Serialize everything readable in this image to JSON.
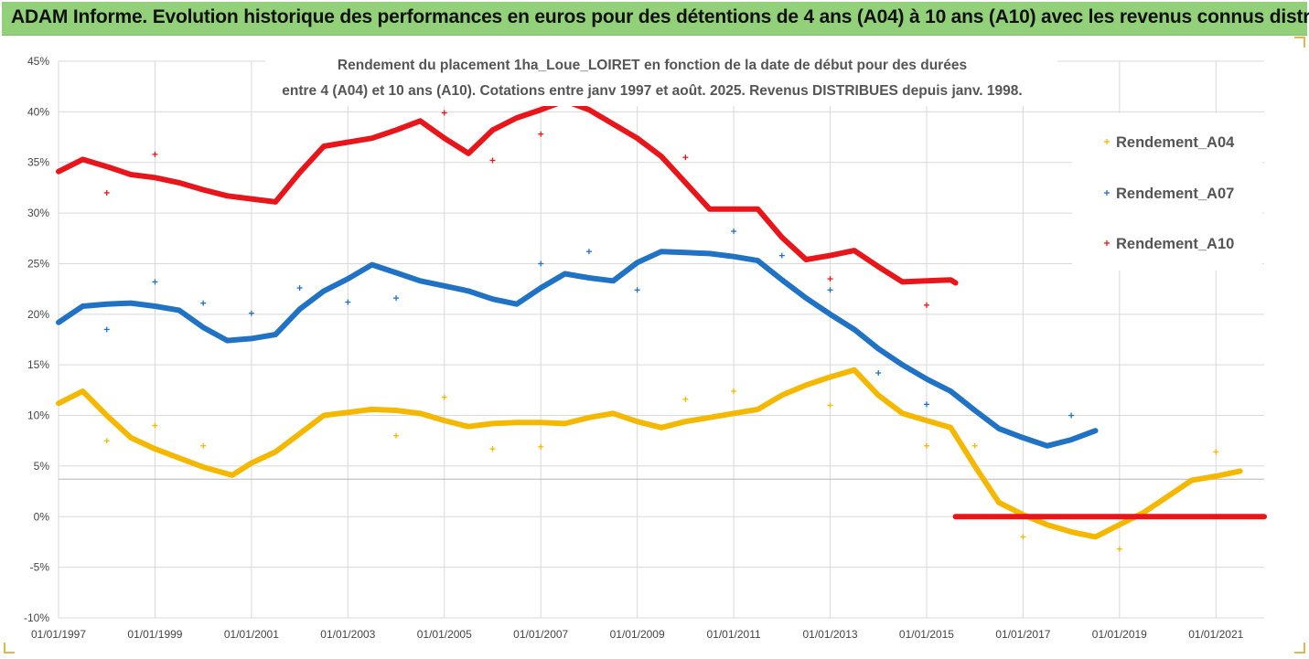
{
  "banner": {
    "title": "ADAM Informe. Evolution historique des performances en euros pour des détentions de 4 ans (A04) à 10 ans (A10) avec les revenus connus distribués"
  },
  "chart_data": {
    "type": "scatter",
    "title_lines": [
      "Rendement du placement 1ha_Loue_LOIRET en fonction de la date de début pour des durées",
      "entre 4 (A04) et 10 ans (A10). Cotations entre janv 1997 et août. 2025. Revenus DISTRIBUES depuis janv. 1998."
    ],
    "xlabel": "",
    "ylabel": "",
    "ylim": [
      -10,
      45
    ],
    "xlim": [
      1997.0,
      2022.0
    ],
    "y_ticks": [
      "-10%",
      "-5%",
      "0%",
      "5%",
      "10%",
      "15%",
      "20%",
      "25%",
      "30%",
      "35%",
      "40%",
      "45%"
    ],
    "x_tick_labels": [
      "01/01/1997",
      "01/01/1999",
      "01/01/2001",
      "01/01/2003",
      "01/01/2005",
      "01/01/2007",
      "01/01/2009",
      "01/01/2011",
      "01/01/2013",
      "01/01/2015",
      "01/01/2017",
      "01/01/2019",
      "01/01/2021"
    ],
    "grid": "horizontal",
    "legend_position": "right",
    "series": [
      {
        "name": "Rendement_A04",
        "color": "#f5b800",
        "line": [
          [
            1997.0,
            11.2
          ],
          [
            1997.5,
            12.4
          ],
          [
            1998.0,
            10.0
          ],
          [
            1998.5,
            7.8
          ],
          [
            1999.0,
            6.7
          ],
          [
            1999.5,
            5.8
          ],
          [
            2000.0,
            4.9
          ],
          [
            2000.6,
            4.1
          ],
          [
            2001.0,
            5.3
          ],
          [
            2001.5,
            6.4
          ],
          [
            2002.0,
            8.2
          ],
          [
            2002.5,
            10.0
          ],
          [
            2003.0,
            10.3
          ],
          [
            2003.5,
            10.6
          ],
          [
            2004.0,
            10.5
          ],
          [
            2004.5,
            10.2
          ],
          [
            2005.0,
            9.5
          ],
          [
            2005.5,
            8.9
          ],
          [
            2006.0,
            9.2
          ],
          [
            2006.5,
            9.3
          ],
          [
            2007.0,
            9.3
          ],
          [
            2007.5,
            9.2
          ],
          [
            2008.0,
            9.8
          ],
          [
            2008.5,
            10.2
          ],
          [
            2009.0,
            9.4
          ],
          [
            2009.5,
            8.8
          ],
          [
            2010.0,
            9.4
          ],
          [
            2010.5,
            9.8
          ],
          [
            2011.0,
            10.2
          ],
          [
            2011.5,
            10.6
          ],
          [
            2012.0,
            12.0
          ],
          [
            2012.5,
            13.0
          ],
          [
            2013.0,
            13.8
          ],
          [
            2013.5,
            14.5
          ],
          [
            2014.0,
            12.0
          ],
          [
            2014.5,
            10.2
          ],
          [
            2015.0,
            9.5
          ],
          [
            2015.5,
            8.8
          ],
          [
            2016.0,
            5.0
          ],
          [
            2016.5,
            1.4
          ],
          [
            2017.0,
            0.2
          ],
          [
            2017.5,
            -0.8
          ],
          [
            2018.0,
            -1.5
          ],
          [
            2018.5,
            -2.0
          ],
          [
            2019.0,
            -0.8
          ],
          [
            2019.5,
            0.4
          ],
          [
            2020.0,
            2.0
          ],
          [
            2020.5,
            3.6
          ],
          [
            2021.0,
            4.0
          ],
          [
            2021.5,
            4.5
          ]
        ],
        "scatter": [
          [
            1998.0,
            7.5
          ],
          [
            1999.0,
            9.0
          ],
          [
            2000.0,
            7.0
          ],
          [
            2004.0,
            8.0
          ],
          [
            2005.0,
            11.8
          ],
          [
            2006.0,
            6.7
          ],
          [
            2007.0,
            6.9
          ],
          [
            2010.0,
            11.6
          ],
          [
            2011.0,
            12.4
          ],
          [
            2013.0,
            11.0
          ],
          [
            2015.0,
            7.0
          ],
          [
            2016.0,
            7.0
          ],
          [
            2017.0,
            -2.0
          ],
          [
            2019.0,
            -3.2
          ],
          [
            2021.0,
            6.4
          ]
        ]
      },
      {
        "name": "Rendement_A07",
        "color": "#1f72c4",
        "line": [
          [
            1997.0,
            19.2
          ],
          [
            1997.5,
            20.8
          ],
          [
            1998.0,
            21.0
          ],
          [
            1998.5,
            21.1
          ],
          [
            1999.0,
            20.8
          ],
          [
            1999.5,
            20.4
          ],
          [
            2000.0,
            18.7
          ],
          [
            2000.5,
            17.4
          ],
          [
            2001.0,
            17.6
          ],
          [
            2001.5,
            18.0
          ],
          [
            2002.0,
            20.5
          ],
          [
            2002.5,
            22.3
          ],
          [
            2003.0,
            23.5
          ],
          [
            2003.5,
            24.9
          ],
          [
            2004.0,
            24.1
          ],
          [
            2004.5,
            23.3
          ],
          [
            2005.0,
            22.8
          ],
          [
            2005.5,
            22.3
          ],
          [
            2006.0,
            21.5
          ],
          [
            2006.5,
            21.0
          ],
          [
            2007.0,
            22.6
          ],
          [
            2007.5,
            24.0
          ],
          [
            2008.0,
            23.6
          ],
          [
            2008.5,
            23.3
          ],
          [
            2009.0,
            25.1
          ],
          [
            2009.5,
            26.2
          ],
          [
            2010.0,
            26.1
          ],
          [
            2010.5,
            26.0
          ],
          [
            2011.0,
            25.7
          ],
          [
            2011.5,
            25.3
          ],
          [
            2012.0,
            23.4
          ],
          [
            2012.5,
            21.6
          ],
          [
            2013.0,
            20.0
          ],
          [
            2013.5,
            18.5
          ],
          [
            2014.0,
            16.6
          ],
          [
            2014.5,
            15.0
          ],
          [
            2015.0,
            13.6
          ],
          [
            2015.5,
            12.4
          ],
          [
            2016.0,
            10.5
          ],
          [
            2016.5,
            8.7
          ],
          [
            2017.0,
            7.8
          ],
          [
            2017.5,
            7.0
          ],
          [
            2018.0,
            7.6
          ],
          [
            2018.5,
            8.5
          ]
        ],
        "scatter": [
          [
            1998.0,
            18.5
          ],
          [
            1999.0,
            23.2
          ],
          [
            2000.0,
            21.1
          ],
          [
            2001.0,
            20.1
          ],
          [
            2002.0,
            22.6
          ],
          [
            2003.0,
            21.2
          ],
          [
            2004.0,
            21.6
          ],
          [
            2007.0,
            25.0
          ],
          [
            2008.0,
            26.2
          ],
          [
            2009.0,
            22.4
          ],
          [
            2011.0,
            28.2
          ],
          [
            2012.0,
            25.8
          ],
          [
            2013.0,
            22.4
          ],
          [
            2014.0,
            14.2
          ],
          [
            2015.0,
            11.1
          ],
          [
            2018.0,
            10.0
          ]
        ]
      },
      {
        "name": "Rendement_A10",
        "color": "#e8161a",
        "line": [
          [
            1997.0,
            34.1
          ],
          [
            1997.5,
            35.3
          ],
          [
            1998.0,
            34.6
          ],
          [
            1998.5,
            33.8
          ],
          [
            1999.0,
            33.5
          ],
          [
            1999.5,
            33.0
          ],
          [
            2000.0,
            32.3
          ],
          [
            2000.5,
            31.7
          ],
          [
            2001.0,
            31.4
          ],
          [
            2001.5,
            31.1
          ],
          [
            2002.0,
            34.0
          ],
          [
            2002.5,
            36.6
          ],
          [
            2003.0,
            37.0
          ],
          [
            2003.5,
            37.4
          ],
          [
            2004.0,
            38.2
          ],
          [
            2004.5,
            39.1
          ],
          [
            2005.0,
            37.4
          ],
          [
            2005.5,
            35.9
          ],
          [
            2006.0,
            38.2
          ],
          [
            2006.5,
            39.4
          ],
          [
            2007.0,
            40.2
          ],
          [
            2007.5,
            41.1
          ],
          [
            2008.0,
            40.2
          ],
          [
            2008.5,
            38.8
          ],
          [
            2009.0,
            37.4
          ],
          [
            2009.5,
            35.6
          ],
          [
            2010.0,
            33.0
          ],
          [
            2010.5,
            30.4
          ],
          [
            2011.0,
            30.4
          ],
          [
            2011.5,
            30.4
          ],
          [
            2012.0,
            27.6
          ],
          [
            2012.5,
            25.4
          ],
          [
            2013.0,
            25.8
          ],
          [
            2013.5,
            26.3
          ],
          [
            2014.0,
            24.7
          ],
          [
            2014.5,
            23.2
          ],
          [
            2015.0,
            23.3
          ],
          [
            2015.5,
            23.4
          ],
          [
            2015.6,
            23.1
          ]
        ],
        "zero_line": [
          [
            2015.6,
            0.0
          ],
          [
            2022.0,
            0.0
          ]
        ],
        "scatter": [
          [
            1998.0,
            32.0
          ],
          [
            1999.0,
            35.8
          ],
          [
            2005.0,
            39.9
          ],
          [
            2006.0,
            35.2
          ],
          [
            2007.0,
            37.8
          ],
          [
            2010.0,
            35.5
          ],
          [
            2013.0,
            23.5
          ],
          [
            2015.0,
            20.9
          ]
        ]
      }
    ]
  }
}
